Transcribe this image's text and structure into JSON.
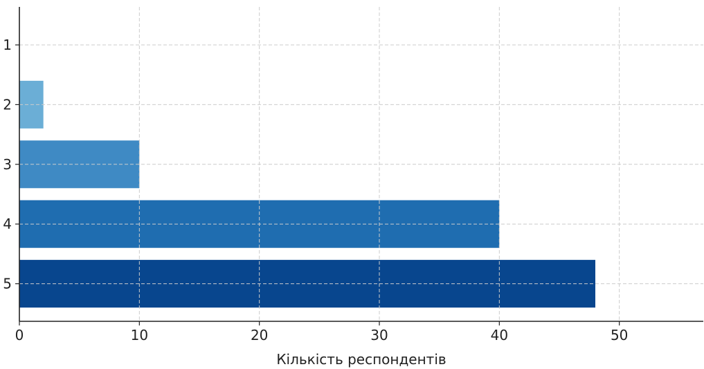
{
  "chart_data": {
    "type": "bar",
    "orientation": "horizontal",
    "categories": [
      "1",
      "2",
      "3",
      "4",
      "5"
    ],
    "values": [
      0,
      2,
      10,
      40,
      48
    ],
    "colors": [
      "#c6dbef",
      "#6baed6",
      "#3f8ac4",
      "#1f6db0",
      "#08468e"
    ],
    "xlabel": "Кількість респондентів",
    "ylabel": "",
    "xlim": [
      0,
      57
    ],
    "xticks": [
      0,
      10,
      20,
      30,
      40,
      50
    ],
    "grid": true,
    "axis_color": "#222222"
  }
}
